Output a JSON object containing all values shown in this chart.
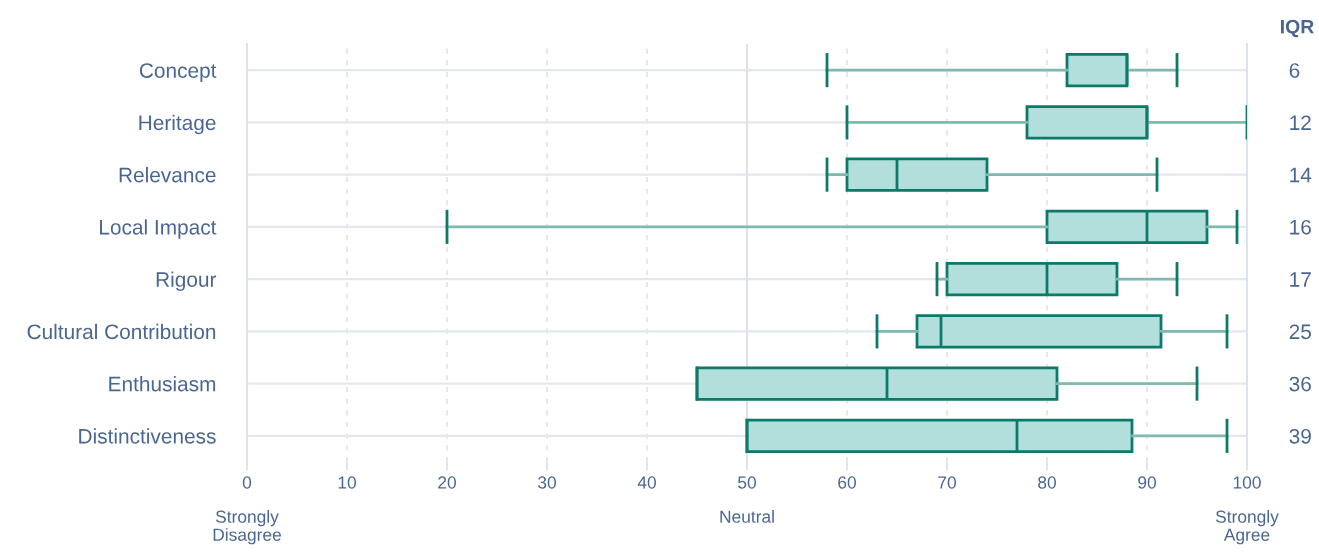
{
  "chart_data": {
    "type": "box",
    "orientation": "horizontal",
    "categories": [
      "Concept",
      "Heritage",
      "Relevance",
      "Local Impact",
      "Rigour",
      "Cultural Contribution",
      "Enthusiasm",
      "Distinctiveness"
    ],
    "boxes": [
      {
        "low": 58,
        "q1": 82,
        "median": 88,
        "q3": 88,
        "high": 93
      },
      {
        "low": 60,
        "q1": 78,
        "median": 90,
        "q3": 90,
        "high": 100
      },
      {
        "low": 58,
        "q1": 60,
        "median": 65,
        "q3": 74,
        "high": 91
      },
      {
        "low": 20,
        "q1": 80,
        "median": 90,
        "q3": 96,
        "high": 99
      },
      {
        "low": 69,
        "q1": 70,
        "median": 80,
        "q3": 87,
        "high": 93
      },
      {
        "low": 63,
        "q1": 67,
        "median": 69.4,
        "q3": 91.4,
        "high": 98
      },
      {
        "low": 45,
        "q1": 45,
        "median": 64,
        "q3": 81,
        "high": 95
      },
      {
        "low": 50,
        "q1": 50,
        "median": 77,
        "q3": 88.5,
        "high": 98
      }
    ],
    "color": "#b2dfdb",
    "y2label": "IQR",
    "value_labels": [
      "6",
      "12",
      "14",
      "16",
      "17",
      "25",
      "36",
      "39"
    ],
    "xlim": [
      0,
      100
    ],
    "xticks": [
      0,
      10,
      20,
      30,
      40,
      50,
      60,
      70,
      80,
      90,
      100
    ],
    "annotations": [
      "Strongly\nDisagree",
      "Neutral",
      "Strongly\nAgree"
    ],
    "ref_lines": [
      {
        "axis": "x",
        "value": 50,
        "color": "#dde3ee",
        "line_style": "solid"
      }
    ],
    "grid": true
  }
}
